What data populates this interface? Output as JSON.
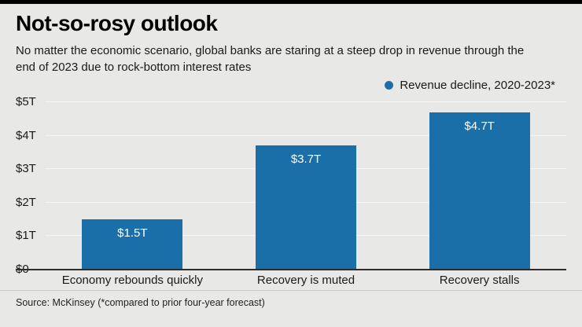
{
  "page": {
    "background": "#e8e8e7",
    "top_bar_color": "#000000"
  },
  "header": {
    "title": "Not-so-rosy outlook",
    "subtitle": "No matter the economic scenario, global banks are staring at a steep drop in revenue through the end of 2023 due to rock-bottom interest rates"
  },
  "legend": {
    "label": "Revenue decline, 2020-2023*",
    "dot_color": "#1b6fa8"
  },
  "chart_data": {
    "type": "bar",
    "title": "Not-so-rosy outlook",
    "categories": [
      "Economy rebounds quickly",
      "Recovery is muted",
      "Recovery stalls"
    ],
    "values": [
      1.5,
      3.7,
      4.7
    ],
    "value_labels": [
      "$1.5T",
      "$3.7T",
      "$4.7T"
    ],
    "series_name": "Revenue decline, 2020-2023*",
    "xlabel": "",
    "ylabel": "",
    "ylim": [
      0,
      5
    ],
    "y_ticks": [
      "$0",
      "$1T",
      "$2T",
      "$3T",
      "$4T",
      "$5T"
    ],
    "bar_color": "#1b6fa8",
    "grid": true,
    "legend_position": "top-right"
  },
  "footer": {
    "source": "Source: McKinsey (*compared to prior four-year forecast)"
  }
}
